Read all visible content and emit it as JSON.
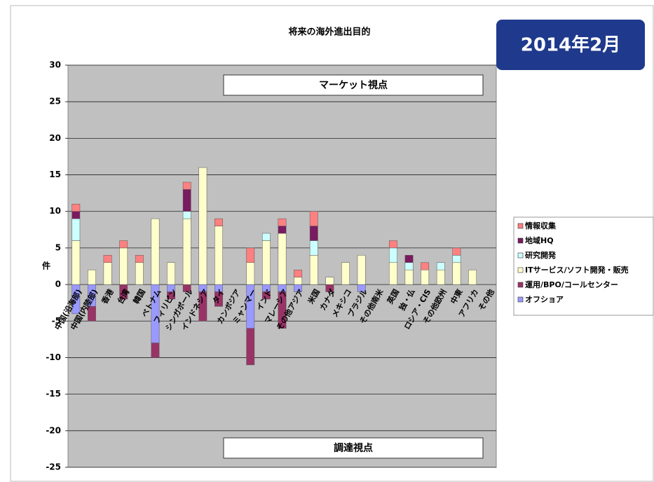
{
  "chart_data": {
    "type": "bar",
    "stacked": true,
    "title": "将来の海外進出目的",
    "badge": "2014年2月",
    "y_label": "件",
    "annotations": [
      "マーケット視点",
      "調達視点"
    ],
    "categories": [
      "中国(沿海部)",
      "中国(内陸部)",
      "香港",
      "台湾",
      "韓国",
      "ベトナム",
      "フィリピン",
      "シンガポール",
      "インドネシア",
      "タイ",
      "カンボジア",
      "ミャンマー",
      "インド",
      "マレーシア",
      "その他アジア",
      "米国",
      "カナダ",
      "メキシコ",
      "ブラジル",
      "その他南米",
      "英国",
      "独・仏",
      "ロシア・CIS",
      "その他欧州",
      "中東",
      "アフリカ",
      "その他"
    ],
    "series": [
      {
        "name": "情報収集",
        "color": "#ff8080",
        "values": [
          1,
          0,
          1,
          1,
          1,
          0,
          0,
          1,
          0,
          1,
          0,
          2,
          0,
          1,
          1,
          2,
          0,
          0,
          0,
          0,
          1,
          0,
          1,
          0,
          1,
          0,
          0
        ]
      },
      {
        "name": "地域HQ",
        "color": "#7a1a60",
        "values": [
          1,
          0,
          0,
          0,
          0,
          0,
          0,
          3,
          0,
          0,
          0,
          0,
          0,
          1,
          0,
          2,
          0,
          0,
          0,
          0,
          0,
          1,
          0,
          0,
          0,
          0,
          0
        ]
      },
      {
        "name": "研究開発",
        "color": "#ccffff",
        "values": [
          3,
          0,
          0,
          0,
          0,
          0,
          0,
          1,
          0,
          0,
          0,
          0,
          1,
          0,
          0,
          2,
          0,
          0,
          0,
          0,
          2,
          1,
          0,
          1,
          1,
          0,
          0
        ]
      },
      {
        "name": "ITサービス/ソフト開発・販売",
        "color": "#ffffcc",
        "values": [
          6,
          2,
          3,
          5,
          3,
          9,
          3,
          9,
          16,
          8,
          0,
          3,
          6,
          7,
          1,
          4,
          1,
          3,
          4,
          0,
          3,
          2,
          2,
          2,
          3,
          2,
          0
        ]
      },
      {
        "name": "運用/BPO/コールセンター",
        "color": "#993366",
        "values": [
          0,
          -2,
          0,
          -2,
          0,
          -2,
          -1,
          -1,
          -4,
          -2,
          0,
          -5,
          -1,
          -5,
          0,
          0,
          -1,
          0,
          0,
          0,
          0,
          0,
          0,
          0,
          0,
          0,
          0
        ]
      },
      {
        "name": "オフショア",
        "color": "#9999ff",
        "values": [
          -4,
          -3,
          0,
          0,
          0,
          -8,
          -1,
          0,
          -1,
          -1,
          0,
          -6,
          -1,
          -1,
          -1,
          0,
          0,
          0,
          -1,
          0,
          0,
          0,
          0,
          0,
          0,
          0,
          0
        ]
      }
    ],
    "ylim": [
      -25,
      30
    ],
    "yticks": [
      -25,
      -20,
      -15,
      -10,
      -5,
      0,
      5,
      10,
      15,
      20,
      25,
      30
    ],
    "grid": true,
    "legend": "right"
  }
}
